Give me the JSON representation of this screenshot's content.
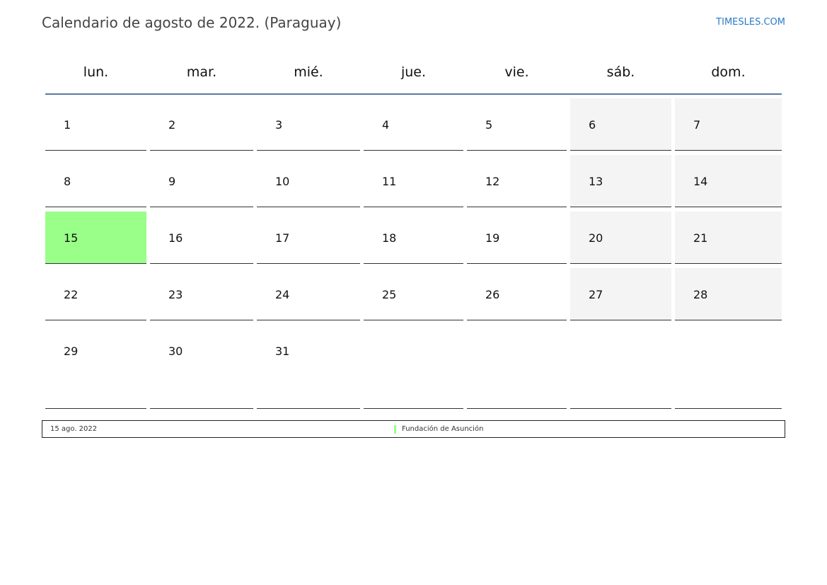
{
  "header": {
    "title": "Calendario de agosto de 2022. (Paraguay)",
    "brand": "TIMESLES.COM"
  },
  "weekdays": [
    "lun.",
    "mar.",
    "mié.",
    "jue.",
    "vie.",
    "sáb.",
    "dom."
  ],
  "days": [
    "1",
    "2",
    "3",
    "4",
    "5",
    "6",
    "7",
    "8",
    "9",
    "10",
    "11",
    "12",
    "13",
    "14",
    "15",
    "16",
    "17",
    "18",
    "19",
    "20",
    "21",
    "22",
    "23",
    "24",
    "25",
    "26",
    "27",
    "28",
    "29",
    "30",
    "31"
  ],
  "holiday_day": "15",
  "colors": {
    "holiday": "#99ff88",
    "weekend": "#f4f4f4",
    "header_line": "#5a7aa0",
    "brand": "#2a7bc9"
  },
  "legend": {
    "date": "15 ago. 2022",
    "event": "Fundación de Asunción"
  }
}
